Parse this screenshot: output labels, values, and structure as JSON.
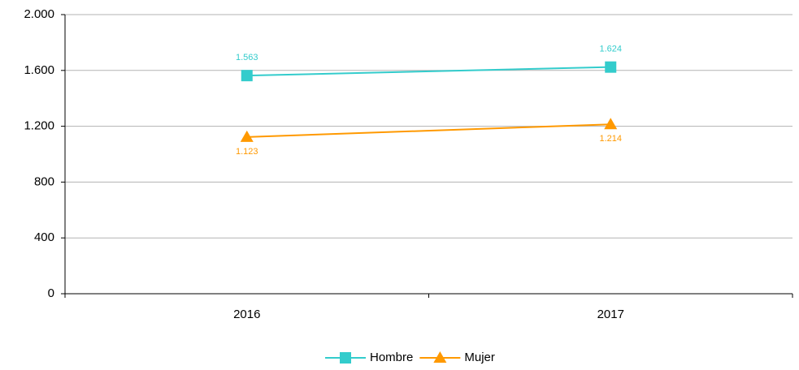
{
  "chart_data": {
    "type": "line",
    "categories": [
      "2016",
      "2017"
    ],
    "series": [
      {
        "name": "Hombre",
        "color": "#33cccc",
        "marker": "square",
        "values": [
          1563,
          1624
        ],
        "value_labels": [
          "1.563",
          "1.624"
        ]
      },
      {
        "name": "Mujer",
        "color": "#ff9900",
        "marker": "triangle",
        "values": [
          1123,
          1214
        ],
        "value_labels": [
          "1.123",
          "1.214"
        ]
      }
    ],
    "ylim": [
      0,
      2000
    ],
    "yticks": [
      0,
      400,
      800,
      {
        "value": 1200,
        "label": "1.200"
      },
      {
        "value": 1600,
        "label": "1.600"
      },
      {
        "value": 2000,
        "label": "2.000"
      }
    ],
    "grid": true,
    "legend": "bottom"
  }
}
